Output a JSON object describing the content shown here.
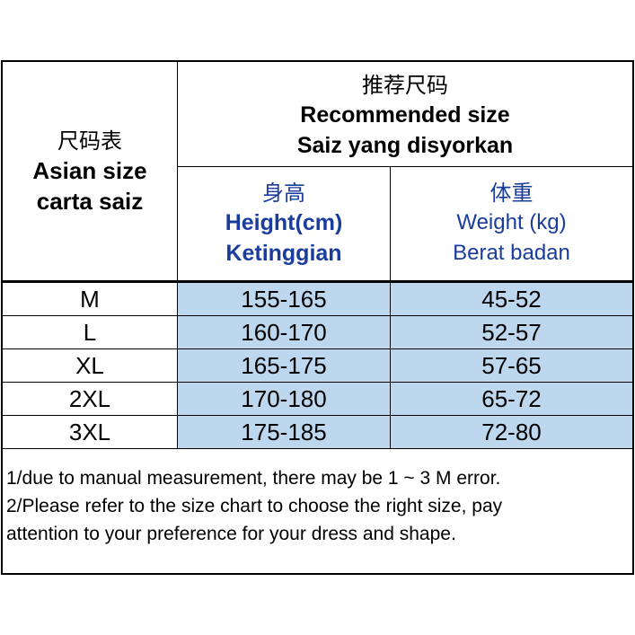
{
  "header": {
    "corner": {
      "zh": "尺码表",
      "en": "Asian size",
      "ms": "carta saiz"
    },
    "recommended": {
      "zh": "推荐尺码",
      "en": "Recommended size",
      "ms": "Saiz yang disyorkan"
    },
    "height": {
      "zh": "身高",
      "en": "Height(cm)",
      "ms": "Ketinggian"
    },
    "weight": {
      "zh": "体重",
      "en": "Weight (kg)",
      "ms": "Berat badan"
    }
  },
  "rows": [
    {
      "size": "M",
      "height": "155-165",
      "weight": "45-52"
    },
    {
      "size": "L",
      "height": "160-170",
      "weight": "52-57"
    },
    {
      "size": "XL",
      "height": "165-175",
      "weight": "57-65"
    },
    {
      "size": "2XL",
      "height": "170-180",
      "weight": "65-72"
    },
    {
      "size": "3XL",
      "height": "175-185",
      "weight": "72-80"
    }
  ],
  "notes": [
    "1/due to manual measurement, there may be 1 ~ 3 M error.",
    "2/Please refer to the size chart to choose the right size, pay",
    "attention to your preference for your dress and shape."
  ],
  "colors": {
    "cell_fill": "#bdd7ee",
    "header_blue": "#1a3c9c"
  }
}
